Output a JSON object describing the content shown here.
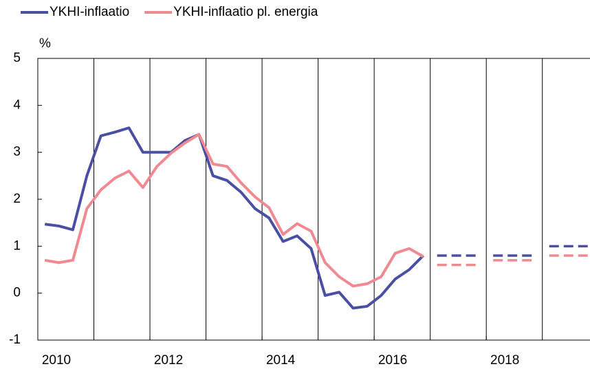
{
  "chart_data": {
    "type": "line",
    "y_unit": "%",
    "x": [
      2010.125,
      2010.375,
      2010.625,
      2010.875,
      2011.125,
      2011.375,
      2011.625,
      2011.875,
      2012.125,
      2012.375,
      2012.625,
      2012.875,
      2013.125,
      2013.375,
      2013.625,
      2013.875,
      2014.125,
      2014.375,
      2014.625,
      2014.875,
      2015.125,
      2015.375,
      2015.625,
      2015.875,
      2016.125,
      2016.375,
      2016.625,
      2016.875
    ],
    "forecast_x": [
      2017,
      2018,
      2019
    ],
    "series": [
      {
        "name": "YKHI-inflaatio",
        "color": "#4a4fa3",
        "values": [
          1.47,
          1.43,
          1.35,
          2.5,
          3.35,
          3.43,
          3.52,
          3.0,
          3.0,
          3.0,
          3.25,
          3.38,
          2.5,
          2.4,
          2.15,
          1.8,
          1.6,
          1.1,
          1.22,
          0.95,
          -0.05,
          0.02,
          -0.32,
          -0.28,
          -0.05,
          0.3,
          0.5,
          0.8
        ],
        "forecast": [
          0.8,
          0.8,
          1.0
        ]
      },
      {
        "name": "YKHI-inflaatio pl. energia",
        "color": "#ee8a90",
        "values": [
          0.7,
          0.65,
          0.7,
          1.8,
          2.2,
          2.45,
          2.6,
          2.25,
          2.7,
          2.98,
          3.2,
          3.38,
          2.75,
          2.7,
          2.35,
          2.05,
          1.82,
          1.25,
          1.48,
          1.32,
          0.65,
          0.35,
          0.15,
          0.2,
          0.35,
          0.85,
          0.95,
          0.78
        ],
        "forecast": [
          0.6,
          0.7,
          0.8
        ]
      }
    ],
    "xlim": [
      2010,
      2019.85
    ],
    "xticks": [
      2010,
      2012,
      2014,
      2016,
      2018
    ],
    "xgrid": [
      2011,
      2012,
      2013,
      2014,
      2015,
      2016,
      2017,
      2018,
      2019
    ],
    "ylim": [
      -1,
      5
    ],
    "yticks": [
      -1,
      0,
      1,
      2,
      3,
      4,
      5
    ],
    "legend": "top"
  }
}
